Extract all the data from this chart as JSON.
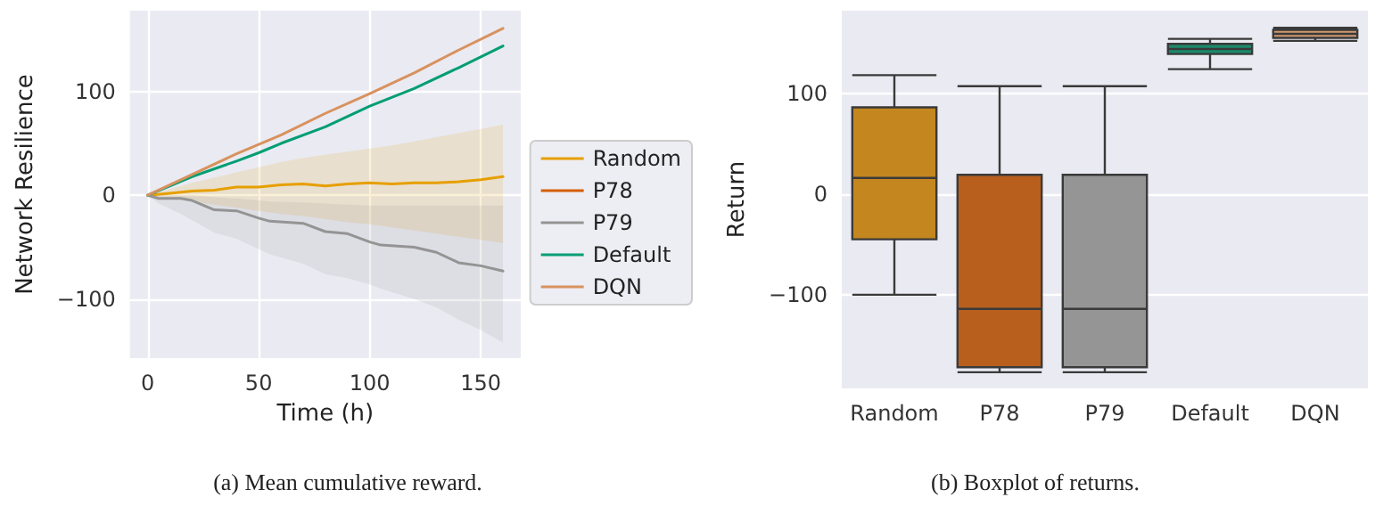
{
  "chart_data": [
    {
      "type": "line",
      "xlabel": "Time (h)",
      "ylabel": "Network Resilience",
      "annotations": [
        "(a) Mean cumulative reward."
      ],
      "xlim": [
        -8,
        168
      ],
      "ylim": [
        -157,
        178
      ],
      "xticks": [
        0,
        50,
        100,
        150
      ],
      "yticks": [
        -100,
        0,
        100
      ],
      "grid": true,
      "legend": "right",
      "line_style": "solid",
      "marker": "none",
      "series": [
        {
          "name": "Random",
          "color": "#e69f00",
          "x": [
            0,
            10,
            20,
            30,
            40,
            50,
            60,
            70,
            80,
            90,
            100,
            110,
            120,
            130,
            140,
            150,
            160
          ],
          "values": [
            0,
            2,
            4,
            5,
            8,
            8,
            10,
            11,
            9,
            11,
            12,
            11,
            12,
            12,
            13,
            15,
            18
          ],
          "lower": [
            0,
            -3,
            -6,
            -9,
            -12,
            -15,
            -18,
            -20,
            -23,
            -26,
            -28,
            -31,
            -34,
            -37,
            -40,
            -43,
            -46
          ],
          "upper": [
            0,
            6,
            12,
            17,
            22,
            27,
            32,
            36,
            39,
            42,
            45,
            48,
            52,
            56,
            60,
            64,
            68
          ]
        },
        {
          "name": "P78",
          "color": "#d55e00"
        },
        {
          "name": "P79",
          "color": "#949494",
          "x": [
            0,
            5,
            15,
            20,
            30,
            40,
            50,
            55,
            70,
            80,
            90,
            100,
            105,
            120,
            130,
            140,
            150,
            160
          ],
          "values": [
            0,
            -3,
            -3,
            -5,
            -14,
            -15,
            -22,
            -25,
            -27,
            -35,
            -37,
            -45,
            -48,
            -50,
            -55,
            -65,
            -68,
            -73
          ],
          "lower": [
            0,
            -8,
            -18,
            -24,
            -36,
            -42,
            -52,
            -57,
            -66,
            -76,
            -80,
            -86,
            -90,
            -100,
            -108,
            -120,
            -130,
            -142
          ],
          "upper": [
            0,
            1,
            0,
            0,
            -2,
            -3,
            -5,
            -6,
            -7,
            -8,
            -9,
            -10,
            -10,
            -10,
            -10,
            -10,
            -10,
            -10
          ]
        },
        {
          "name": "Default",
          "color": "#029e73",
          "x": [
            0,
            20,
            40,
            50,
            60,
            80,
            100,
            120,
            140,
            160
          ],
          "values": [
            0,
            18,
            33,
            41,
            50,
            66,
            86,
            103,
            123,
            144
          ]
        },
        {
          "name": "DQN",
          "color": "#d8925e",
          "x": [
            0,
            20,
            40,
            50,
            60,
            80,
            100,
            120,
            140,
            160
          ],
          "values": [
            0,
            20,
            40,
            49,
            58,
            79,
            98,
            118,
            140,
            161
          ]
        }
      ]
    },
    {
      "type": "box",
      "ylabel": "Return",
      "annotations": [
        "(b) Boxplot of returns."
      ],
      "categories": [
        "Random",
        "P78",
        "P79",
        "Default",
        "DQN"
      ],
      "ylim": [
        -193,
        182
      ],
      "yticks": [
        -100,
        0,
        100
      ],
      "grid": "y",
      "colors": [
        "#c4861f",
        "#b85f1e",
        "#959595",
        "#1b8a6b",
        "#d09a6e"
      ],
      "boxes": [
        {
          "low": -100,
          "q1": -45,
          "median": 16,
          "q3": 86,
          "high": 118
        },
        {
          "low": -177,
          "q1": -172,
          "median": -114,
          "q3": 19,
          "high": 107
        },
        {
          "low": -177,
          "q1": -172,
          "median": -114,
          "q3": 19,
          "high": 107
        },
        {
          "low": 124,
          "q1": 139,
          "median": 144,
          "q3": 149,
          "high": 154
        },
        {
          "low": 152,
          "q1": 155,
          "median": 159,
          "q3": 163,
          "high": 165
        }
      ]
    }
  ]
}
